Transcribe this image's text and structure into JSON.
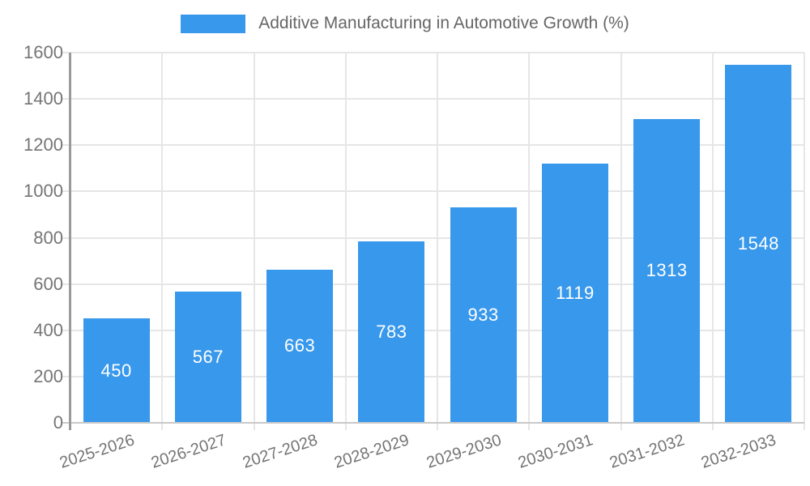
{
  "legend": {
    "title": "Additive Manufacturing in Automotive Growth (%)"
  },
  "chart_data": {
    "type": "bar",
    "title": "Additive Manufacturing in Automotive Growth (%)",
    "categories": [
      "2025-2026",
      "2026-2027",
      "2027-2028",
      "2028-2029",
      "2029-2030",
      "2030-2031",
      "2031-2032",
      "2032-2033"
    ],
    "values": [
      450,
      567,
      663,
      783,
      933,
      1119,
      1313,
      1548
    ],
    "value_labels": [
      "450",
      "567",
      "663",
      "783",
      "933",
      "1119",
      "1313",
      "1548"
    ],
    "xlabel": "",
    "ylabel": "",
    "ylim": [
      0,
      1600
    ],
    "yticks": [
      0,
      200,
      400,
      600,
      800,
      1000,
      1200,
      1400,
      1600
    ],
    "grid": true,
    "legend_position": "top-center",
    "colors": {
      "bar_fill": "#3898ec",
      "value_label": "#ffffff",
      "gridline": "#e6e6e6",
      "baseline": "#c9c9c9",
      "y_axis_line": "#9a9a9a",
      "tick_label": "#757575",
      "title_text": "#666666"
    }
  }
}
